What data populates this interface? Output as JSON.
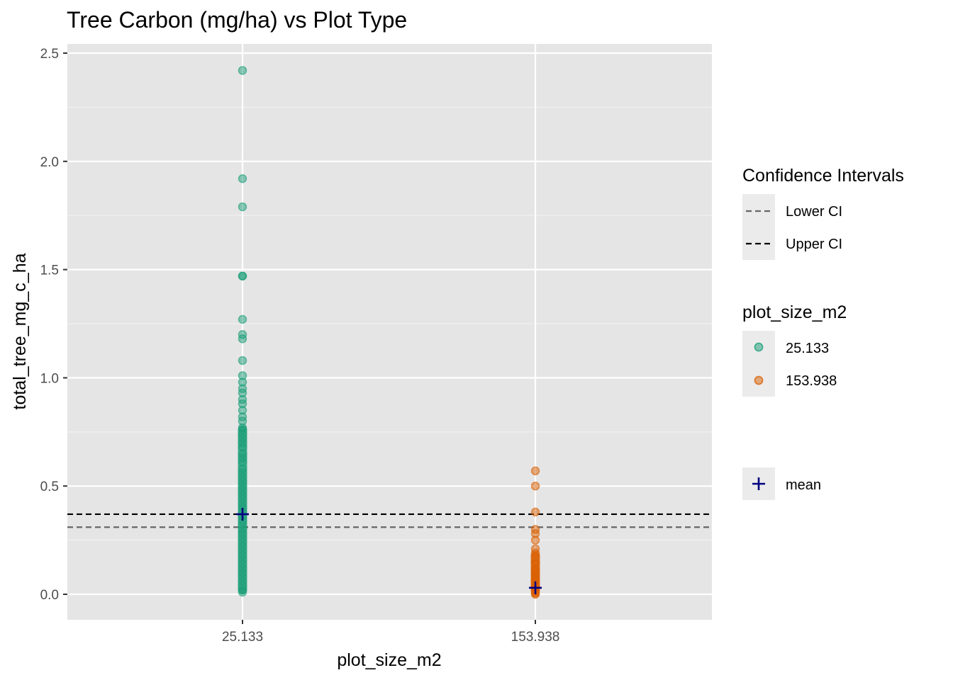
{
  "chart_data": {
    "type": "scatter",
    "title": "Tree Carbon (mg/ha) vs Plot Type",
    "xlabel": "plot_size_m2",
    "ylabel": "total_tree_mg_c_ha",
    "categories": [
      "25.133",
      "153.938"
    ],
    "ylim": [
      -0.12,
      2.5
    ],
    "yticks": [
      "0.0",
      "0.5",
      "1.0",
      "1.5",
      "2.0",
      "2.5"
    ],
    "series": [
      {
        "name": "25.133",
        "color": "#1B9E77",
        "category": "25.133",
        "values": [
          2.42,
          1.92,
          1.79,
          1.47,
          1.47,
          1.27,
          1.2,
          1.18,
          1.08,
          1.01,
          0.98,
          0.95,
          0.93,
          0.9,
          0.88,
          0.85,
          0.82,
          0.8,
          0.77,
          0.76,
          0.74,
          0.72,
          0.7,
          0.68,
          0.65,
          0.63,
          0.61,
          0.58,
          0.56,
          0.54,
          0.52,
          0.5,
          0.48,
          0.46,
          0.44,
          0.42,
          0.4,
          0.38,
          0.36,
          0.34,
          0.32,
          0.3,
          0.28,
          0.26,
          0.24,
          0.22,
          0.2,
          0.18,
          0.16,
          0.14,
          0.12,
          0.1,
          0.08,
          0.06,
          0.04,
          0.02,
          0.01
        ]
      },
      {
        "name": "153.938",
        "color": "#D95F02",
        "category": "153.938",
        "values": [
          0.57,
          0.5,
          0.38,
          0.3,
          0.28,
          0.25,
          0.21,
          0.19,
          0.17,
          0.15,
          0.14,
          0.12,
          0.11,
          0.1,
          0.09,
          0.08,
          0.07,
          0.06,
          0.05,
          0.04,
          0.03,
          0.02,
          0.015,
          0.01,
          0.005,
          0.0
        ]
      }
    ],
    "means": [
      {
        "category": "25.133",
        "value": 0.37
      },
      {
        "category": "153.938",
        "value": 0.03
      }
    ],
    "reference_lines": [
      {
        "name": "Lower CI",
        "value": 0.31,
        "color": "#666666"
      },
      {
        "name": "Upper CI",
        "value": 0.37,
        "color": "#000000"
      }
    ],
    "legend": {
      "ci_title": "Confidence Intervals",
      "ci_items": [
        "Lower CI",
        "Upper CI"
      ],
      "fill_title": "plot_size_m2",
      "fill_items": [
        "25.133",
        "153.938"
      ],
      "mean_label": "mean",
      "mean_color": "#000080",
      "position": "right"
    },
    "grid": true,
    "panel_color": "#E5E5E5"
  }
}
